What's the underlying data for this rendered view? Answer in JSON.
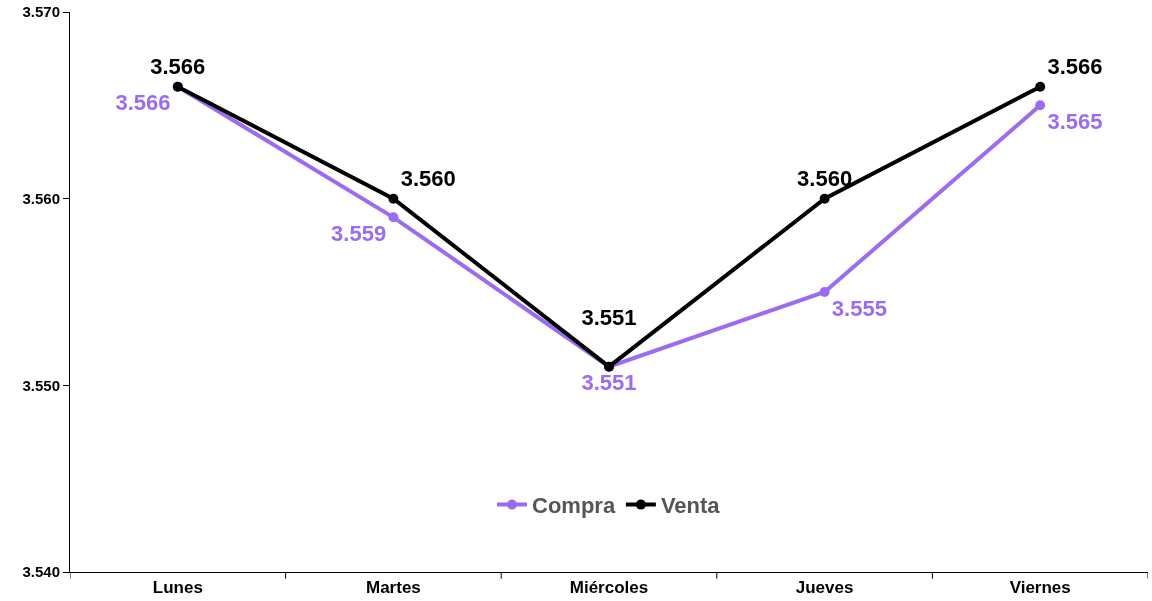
{
  "chart_data": {
    "type": "line",
    "categories": [
      "Lunes",
      "Martes",
      "Miércoles",
      "Jueves",
      "Viernes"
    ],
    "series": [
      {
        "name": "Compra",
        "color": "#9a6cf2",
        "values": [
          3.566,
          3.559,
          3.551,
          3.555,
          3.565
        ],
        "value_labels": [
          "3.566",
          "3.559",
          "3.551",
          "3.555",
          "3.565"
        ]
      },
      {
        "name": "Venta",
        "color": "#000000",
        "values": [
          3.566,
          3.56,
          3.551,
          3.56,
          3.566
        ],
        "value_labels": [
          "3.566",
          "3.560",
          "3.551",
          "3.560",
          "3.566"
        ]
      }
    ],
    "ylim": [
      3.54,
      3.57
    ],
    "yticks": [
      {
        "value": 3.54,
        "label": "3.540"
      },
      {
        "value": 3.55,
        "label": "3.550"
      },
      {
        "value": 3.56,
        "label": "3.560"
      },
      {
        "value": 3.57,
        "label": "3.570"
      }
    ],
    "grid": false,
    "legend": "bottom",
    "marker": "circle",
    "line_style": "solid"
  }
}
